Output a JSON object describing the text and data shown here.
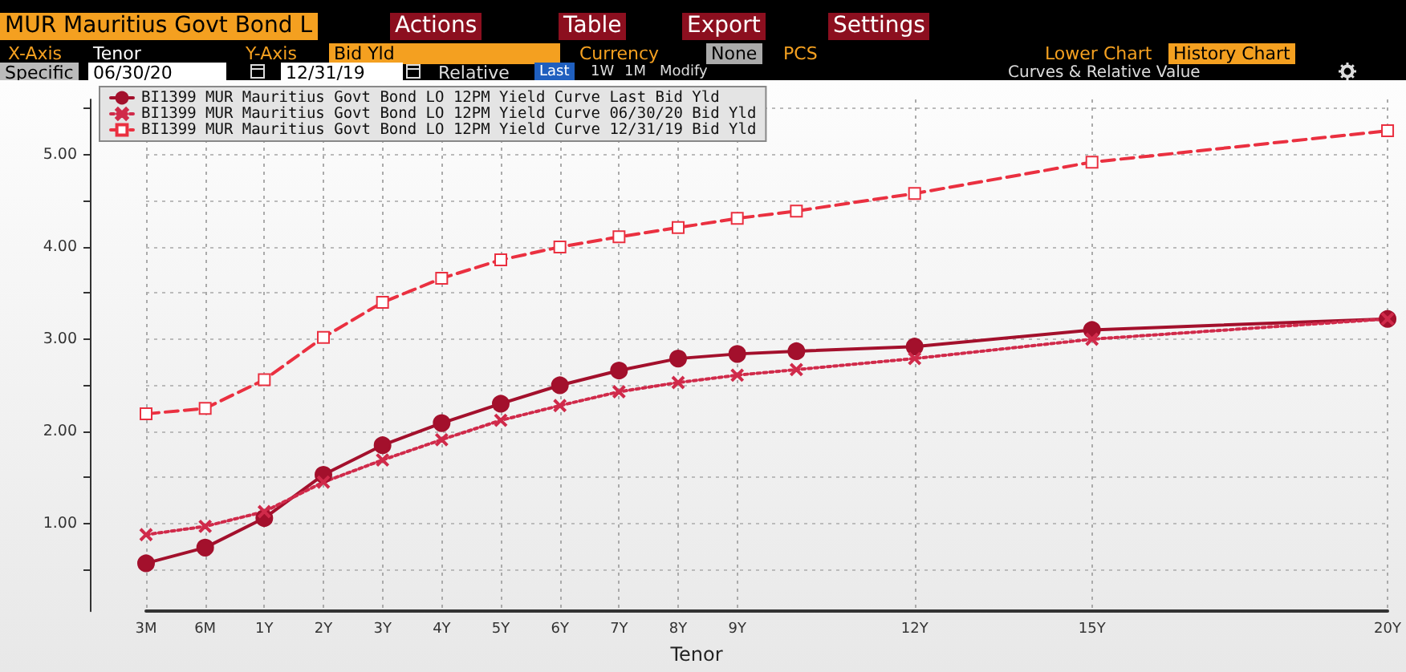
{
  "chart_data": {
    "type": "line",
    "title": "MUR Mauritius Govt Bond L",
    "xlabel": "Tenor",
    "annotations": [
      "Actions",
      "Table",
      "Export",
      "Settings",
      "X-Axis",
      "Tenor",
      "Y-Axis",
      "Bid Yld",
      "Currency",
      "None",
      "PCS",
      "Lower Chart",
      "History Chart",
      "Specific",
      "06/30/20",
      "12/31/19",
      "Relative",
      "Last",
      "1W",
      "1M",
      "Modify",
      "Curves & Relative Value"
    ],
    "categories": [
      "3M",
      "6M",
      "1Y",
      "2Y",
      "3Y",
      "4Y",
      "5Y",
      "6Y",
      "7Y",
      "8Y",
      "9Y",
      null,
      null,
      "12Y",
      null,
      null,
      "15Y",
      null,
      null,
      null,
      null,
      "20Y"
    ],
    "series": [
      {
        "name": "BI1399 MUR Mauritius Govt Bond LO 12PM Yield Curve Last Bid Yld",
        "color": "#a3102c",
        "marker": "circle",
        "line_style": "solid",
        "values": [
          0.57,
          0.74,
          1.06,
          1.53,
          1.85,
          2.09,
          2.3,
          2.5,
          2.66,
          2.79,
          2.84,
          2.87,
          null,
          2.92,
          null,
          null,
          3.1,
          null,
          null,
          null,
          null,
          3.22
        ]
      },
      {
        "name": "BI1399 MUR Mauritius Govt Bond LO 12PM Yield Curve 06/30/20 Bid Yld",
        "color": "#d02a4a",
        "marker": "cross",
        "line_style": "dotted",
        "values": [
          0.88,
          0.97,
          1.13,
          1.45,
          1.69,
          1.91,
          2.12,
          2.28,
          2.43,
          2.53,
          2.61,
          2.67,
          null,
          2.79,
          null,
          null,
          3.0,
          null,
          null,
          null,
          null,
          3.22
        ]
      },
      {
        "name": "BI1399 MUR Mauritius Govt Bond LO 12PM Yield Curve 12/31/19 Bid Yld",
        "color": "#ea3040",
        "marker": "square",
        "line_style": "dashed",
        "values": [
          2.19,
          2.25,
          2.56,
          3.02,
          3.4,
          3.66,
          3.86,
          4.0,
          4.11,
          4.21,
          4.31,
          4.39,
          null,
          4.58,
          null,
          null,
          4.92,
          null,
          null,
          null,
          null,
          5.26
        ]
      }
    ],
    "ylim": [
      0.05,
      5.6
    ],
    "yticks": [
      {
        "value": 0.5,
        "label": null
      },
      {
        "value": 1,
        "label": "1.00"
      },
      {
        "value": 1.5,
        "label": null
      },
      {
        "value": 2,
        "label": "2.00"
      },
      {
        "value": 2.5,
        "label": null
      },
      {
        "value": 3,
        "label": "3.00"
      },
      {
        "value": 3.5,
        "label": null
      },
      {
        "value": 4,
        "label": "4.00"
      },
      {
        "value": 4.5,
        "label": null
      },
      {
        "value": 5,
        "label": "5.00"
      },
      {
        "value": 5.5,
        "label": null
      }
    ],
    "grid": true,
    "legend": "top left"
  }
}
